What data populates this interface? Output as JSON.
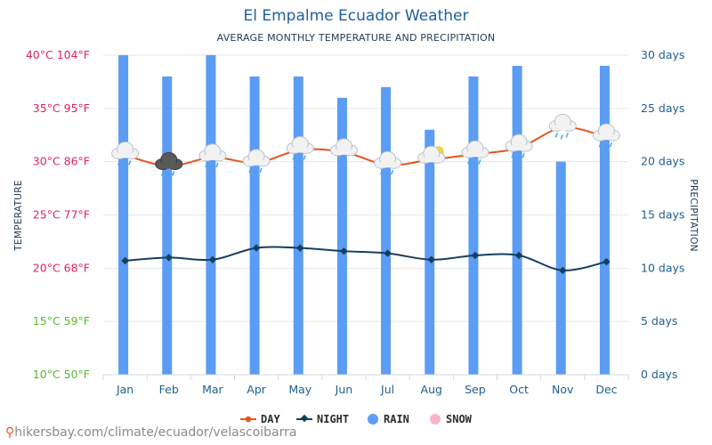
{
  "header": {
    "title": "El Empalme Ecuador Weather",
    "subtitle": "AVERAGE MONTHLY TEMPERATURE AND PRECIPITATION"
  },
  "axes": {
    "left_label": "TEMPERATURE",
    "right_label": "PRECIPITATION",
    "left_ticks": [
      {
        "value": 40,
        "label": "40°C 104°F",
        "color": "#e0245e"
      },
      {
        "value": 35,
        "label": "35°C 95°F",
        "color": "#e0245e"
      },
      {
        "value": 30,
        "label": "30°C 86°F",
        "color": "#e0245e"
      },
      {
        "value": 25,
        "label": "25°C 77°F",
        "color": "#e0245e"
      },
      {
        "value": 20,
        "label": "20°C 68°F",
        "color": "#e0245e"
      },
      {
        "value": 15,
        "label": "15°C 59°F",
        "color": "#5cb82e"
      },
      {
        "value": 10,
        "label": "10°C 50°F",
        "color": "#5cb82e"
      }
    ],
    "right_ticks": [
      {
        "value": 30,
        "label": "30 days"
      },
      {
        "value": 25,
        "label": "25 days"
      },
      {
        "value": 20,
        "label": "20 days"
      },
      {
        "value": 15,
        "label": "15 days"
      },
      {
        "value": 10,
        "label": "10 days"
      },
      {
        "value": 5,
        "label": "5 days"
      },
      {
        "value": 0,
        "label": "0 days"
      }
    ]
  },
  "legend": {
    "day": "DAY",
    "night": "NIGHT",
    "rain": "RAIN",
    "snow": "SNOW"
  },
  "colors": {
    "day": "#e8531c",
    "night": "#163f5c",
    "rain": "#5b9cf5",
    "snow": "#f7b6c8"
  },
  "footer": {
    "source": "hikersbay.com/climate/ecuador/velascoibarra"
  },
  "chart_data": {
    "type": "bar+line",
    "categories": [
      "Jan",
      "Feb",
      "Mar",
      "Apr",
      "May",
      "Jun",
      "Jul",
      "Aug",
      "Sep",
      "Oct",
      "Nov",
      "Dec"
    ],
    "temperature_range": [
      10,
      40
    ],
    "precipitation_range": [
      0,
      30
    ],
    "series": [
      {
        "name": "DAY",
        "unit": "°C",
        "axis": "left",
        "values": [
          30.6,
          29.6,
          30.4,
          29.9,
          31.1,
          30.9,
          29.7,
          30.2,
          30.7,
          31.3,
          33.2,
          32.3
        ]
      },
      {
        "name": "NIGHT",
        "unit": "°C",
        "axis": "left",
        "values": [
          20.7,
          21.0,
          20.8,
          21.9,
          21.9,
          21.6,
          21.4,
          20.8,
          21.2,
          21.2,
          19.8,
          20.6
        ]
      },
      {
        "name": "RAIN",
        "unit": "days",
        "axis": "right",
        "values": [
          30,
          28,
          30,
          28,
          28,
          26,
          27,
          23,
          28,
          29,
          20,
          29
        ]
      }
    ],
    "weather_icons": [
      "rain",
      "storm",
      "rain",
      "rain",
      "rain",
      "cloud",
      "rain",
      "partly-sunny",
      "rain",
      "rain",
      "rain",
      "rain"
    ]
  }
}
